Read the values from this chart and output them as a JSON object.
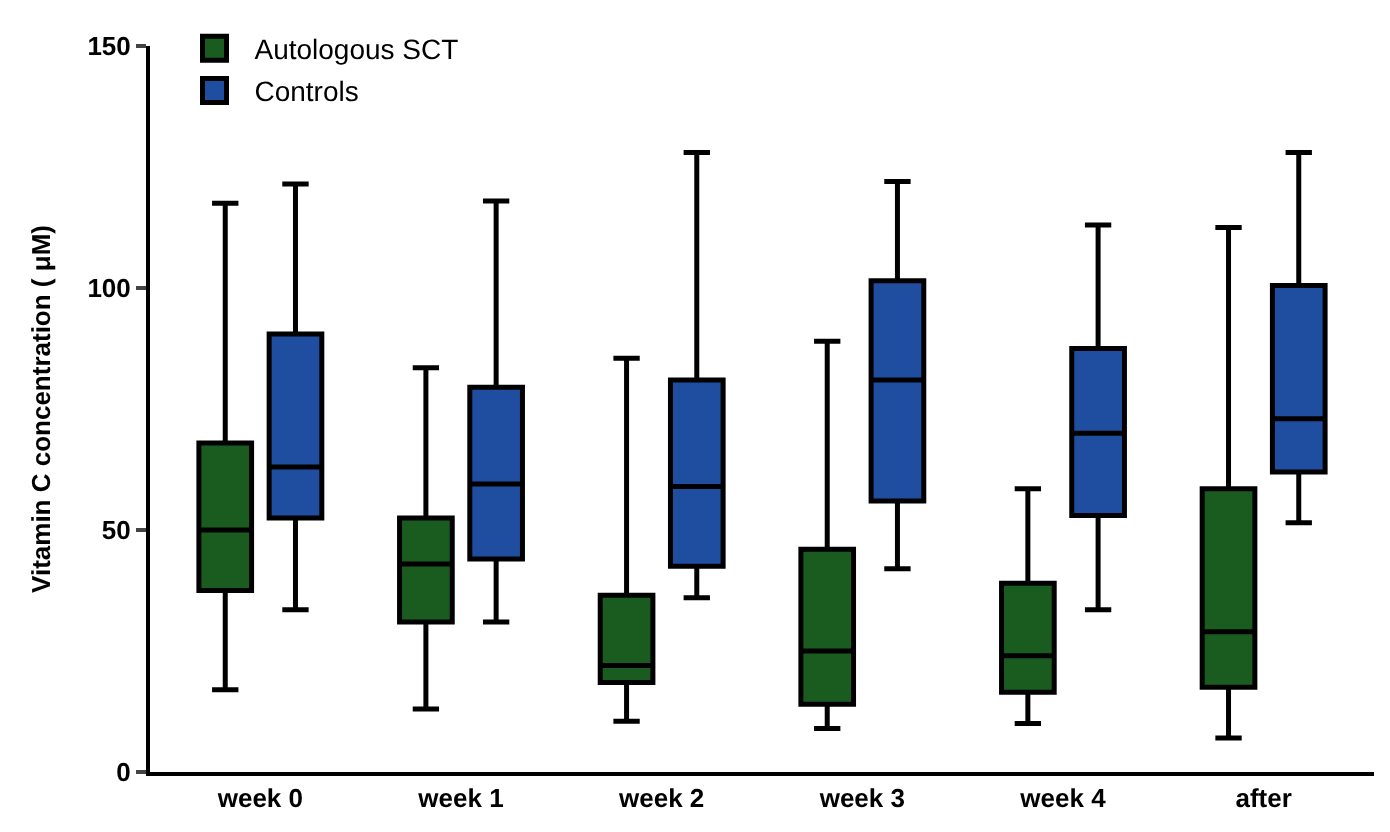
{
  "chart_data": {
    "type": "box",
    "ylabel": "Vitamin C concentration ( μM)",
    "categories": [
      "week 0",
      "week 1",
      "week 2",
      "week 3",
      "week 4",
      "after"
    ],
    "series": [
      {
        "name": "Autologous SCT",
        "color": "#1a5c20",
        "boxes": [
          {
            "low": 17,
            "q1": 37.5,
            "median": 50,
            "q3": 68,
            "high": 117.5
          },
          {
            "low": 13,
            "q1": 31,
            "median": 43,
            "q3": 52.5,
            "high": 83.5
          },
          {
            "low": 10.5,
            "q1": 18.5,
            "median": 22,
            "q3": 36.5,
            "high": 85.5
          },
          {
            "low": 9,
            "q1": 14,
            "median": 25,
            "q3": 46,
            "high": 89
          },
          {
            "low": 10,
            "q1": 16.5,
            "median": 24,
            "q3": 39,
            "high": 58.5
          },
          {
            "low": 7,
            "q1": 17.5,
            "median": 29,
            "q3": 58.5,
            "high": 112.5
          }
        ]
      },
      {
        "name": "Controls",
        "color": "#1f4ea0",
        "boxes": [
          {
            "low": 33.5,
            "q1": 52.5,
            "median": 63,
            "q3": 90.5,
            "high": 121.5
          },
          {
            "low": 31,
            "q1": 44,
            "median": 59.5,
            "q3": 79.5,
            "high": 118
          },
          {
            "low": 36,
            "q1": 42.5,
            "median": 59,
            "q3": 81,
            "high": 128
          },
          {
            "low": 42,
            "q1": 56,
            "median": 81,
            "q3": 101.5,
            "high": 122
          },
          {
            "low": 33.5,
            "q1": 53,
            "median": 70,
            "q3": 87.5,
            "high": 113
          },
          {
            "low": 51.5,
            "q1": 62,
            "median": 73,
            "q3": 100.5,
            "high": 128
          }
        ]
      }
    ],
    "ylim": [
      0,
      150
    ],
    "yticks": [
      0,
      50,
      100,
      150
    ],
    "legend": "top left"
  }
}
